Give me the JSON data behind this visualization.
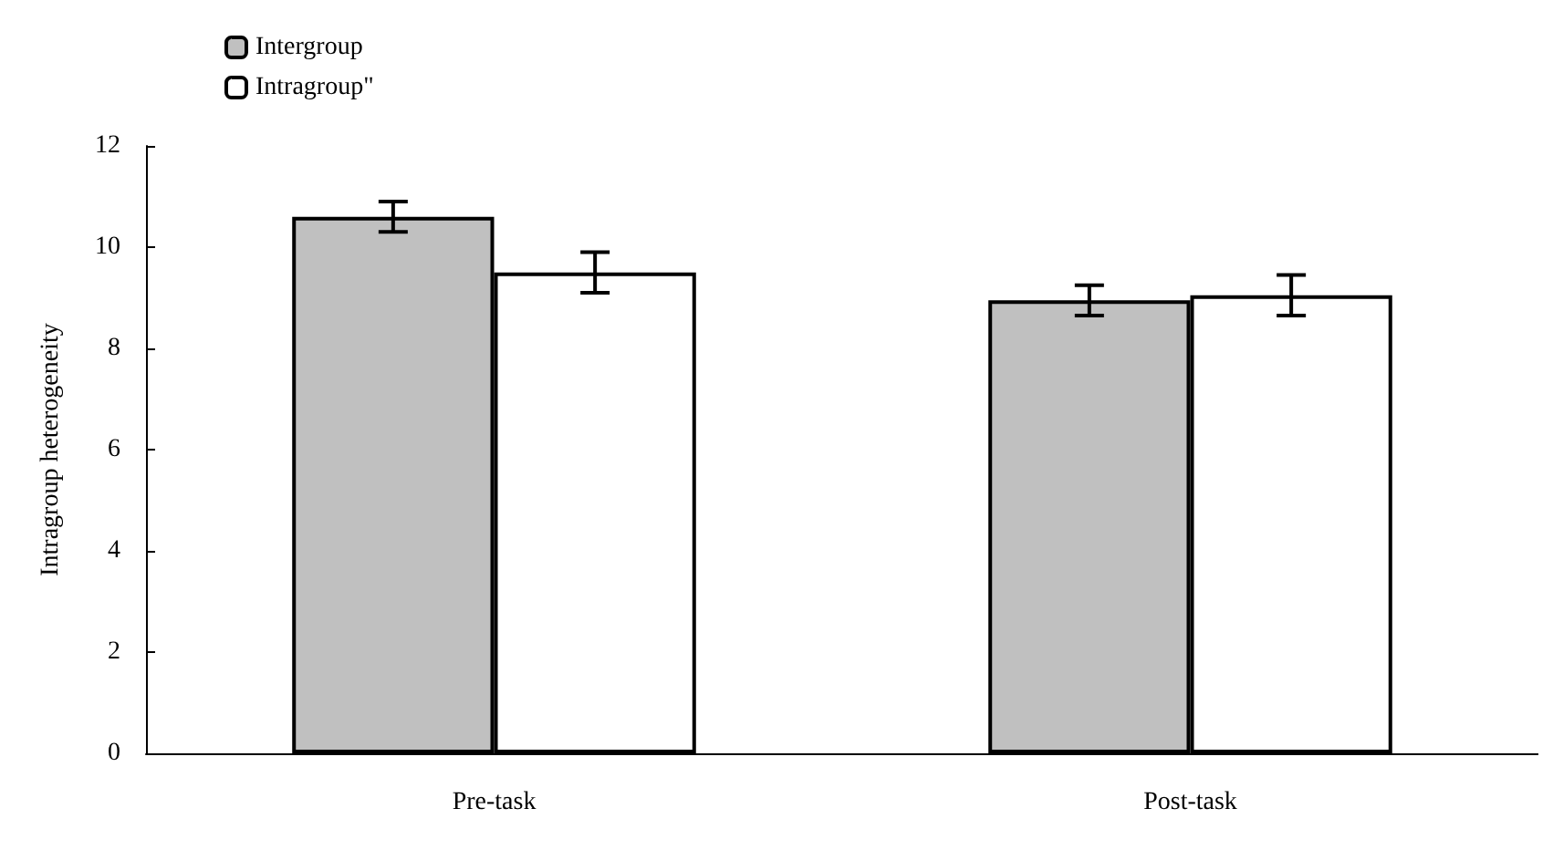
{
  "chart_data": {
    "type": "bar",
    "ylabel": "Intragroup heterogeneity",
    "categories": [
      "Pre-task",
      "Post-task"
    ],
    "series": [
      {
        "name": "Intergroup",
        "color": "#c0c0c0",
        "values": [
          10.6,
          8.95
        ],
        "errors": [
          0.3,
          0.3
        ]
      },
      {
        "name": "Intragroup\"",
        "color": "#ffffff",
        "values": [
          9.5,
          9.05
        ],
        "errors": [
          0.4,
          0.4
        ]
      }
    ],
    "ylim": [
      0,
      12
    ],
    "yticks": [
      0,
      2,
      4,
      6,
      8,
      10,
      12
    ],
    "grid": false,
    "legend": "top left"
  }
}
